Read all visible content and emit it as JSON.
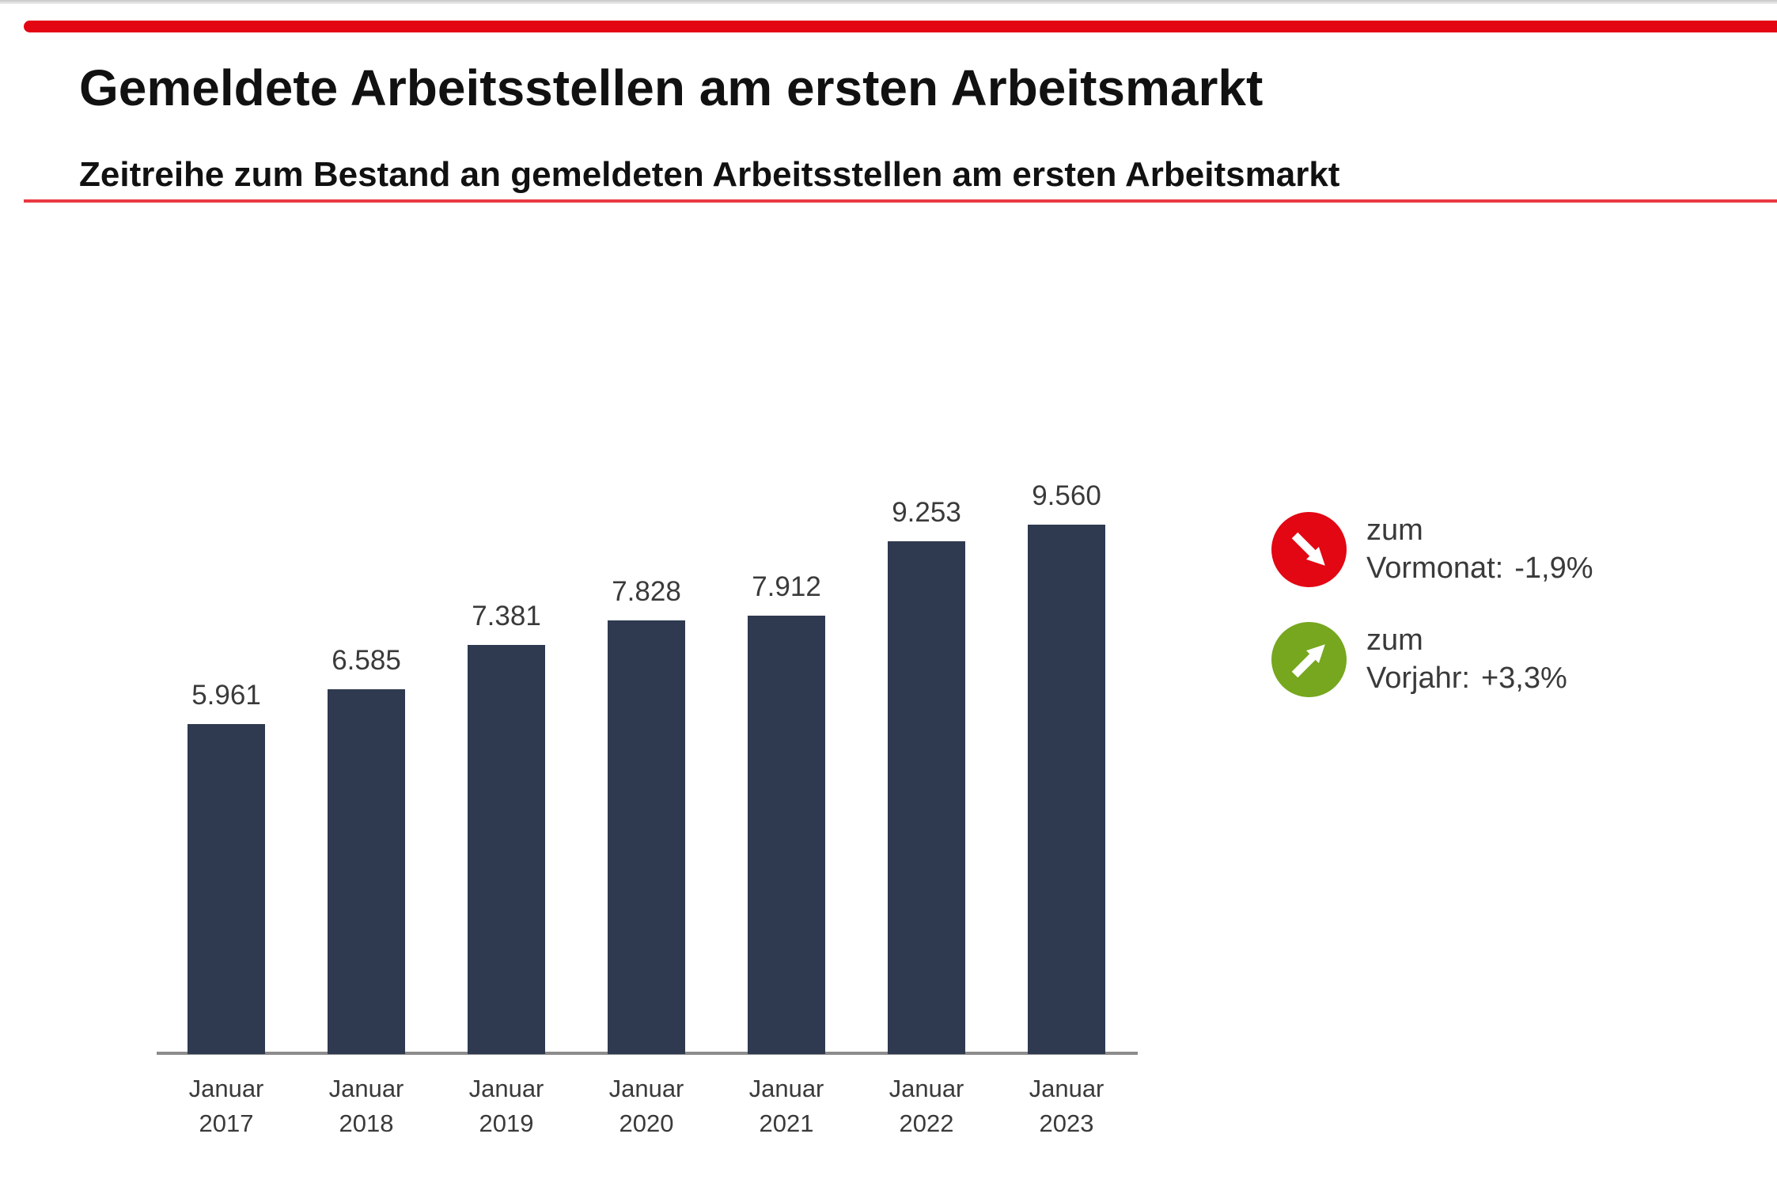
{
  "header": {
    "title": "Gemeldete Arbeitsstellen am ersten Arbeitsmarkt",
    "subtitle": "Zeitreihe zum Bestand an gemeldeten Arbeitsstellen am ersten Arbeitsmarkt"
  },
  "chart_data": {
    "type": "bar",
    "title": "Gemeldete Arbeitsstellen am ersten Arbeitsmarkt",
    "categories": [
      "Januar 2017",
      "Januar 2018",
      "Januar 2019",
      "Januar 2020",
      "Januar 2021",
      "Januar 2022",
      "Januar 2023"
    ],
    "values": [
      5961,
      6585,
      7381,
      7828,
      7912,
      9253,
      9560
    ],
    "value_labels": [
      "5.961",
      "6.585",
      "7.381",
      "7.828",
      "7.912",
      "9.253",
      "9.560"
    ],
    "xlabel": "",
    "ylabel": "",
    "ylim": [
      0,
      9560
    ],
    "grid": false,
    "legend_position": "right",
    "bar_color": "#2f3a50",
    "axis_color": "#8c8c8c"
  },
  "indicators": [
    {
      "label_line1": "zum",
      "label": "Vormonat:",
      "value": "-1,9%",
      "direction": "down-right",
      "circle_color": "#e30613",
      "icon": "arrow-down-right-icon"
    },
    {
      "label_line1": "zum",
      "label": "Vorjahr:",
      "value": "+3,3%",
      "direction": "up-right",
      "circle_color": "#76a71e",
      "icon": "arrow-up-right-icon"
    }
  ],
  "decor": {
    "top_bar_color": "#e30613",
    "divider_color": "#e30613"
  }
}
